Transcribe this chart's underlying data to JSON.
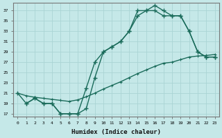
{
  "xlabel": "Humidex (Indice chaleur)",
  "background_color": "#c5e8e8",
  "grid_color": "#aad4d4",
  "line_color": "#1a6b5a",
  "line1_x": [
    1,
    2,
    3,
    4,
    5,
    6,
    7,
    8,
    9,
    10,
    11,
    12,
    13,
    14,
    15,
    16,
    17,
    18,
    19,
    20,
    21,
    22,
    23
  ],
  "line1_y": [
    19,
    20,
    19,
    19,
    17,
    17,
    17,
    18,
    24,
    29,
    30,
    31,
    33,
    37,
    37,
    38,
    37,
    36,
    36,
    33,
    29,
    28,
    28
  ],
  "line2_x": [
    0,
    1,
    2,
    3,
    4,
    5,
    6,
    7,
    8,
    9,
    10,
    11,
    12,
    13,
    14,
    15,
    16,
    17,
    18,
    19,
    20,
    21,
    22,
    23
  ],
  "line2_y": [
    21,
    19,
    20,
    19,
    19,
    17,
    17,
    17,
    22,
    27,
    29,
    30,
    31,
    33,
    36,
    37,
    37,
    36,
    36,
    36,
    33,
    29,
    28,
    28
  ],
  "line3_x": [
    0,
    1,
    2,
    3,
    4,
    5,
    6,
    7,
    8,
    9,
    10,
    11,
    12,
    13,
    14,
    15,
    16,
    17,
    18,
    19,
    20,
    21,
    22,
    23
  ],
  "line3_y": [
    21,
    20.5,
    20.2,
    20.0,
    19.8,
    19.6,
    19.4,
    19.7,
    20.3,
    21.0,
    21.8,
    22.5,
    23.2,
    24.0,
    24.8,
    25.5,
    26.2,
    26.8,
    27.0,
    27.5,
    28.0,
    28.2,
    28.3,
    28.5
  ],
  "ylim": [
    16.5,
    38.5
  ],
  "yticks": [
    17,
    19,
    21,
    23,
    25,
    27,
    29,
    31,
    33,
    35,
    37
  ],
  "xlim": [
    -0.5,
    23.5
  ],
  "xticks": [
    0,
    1,
    2,
    3,
    4,
    5,
    6,
    7,
    8,
    9,
    10,
    11,
    12,
    13,
    14,
    15,
    16,
    17,
    18,
    19,
    20,
    21,
    22,
    23
  ]
}
